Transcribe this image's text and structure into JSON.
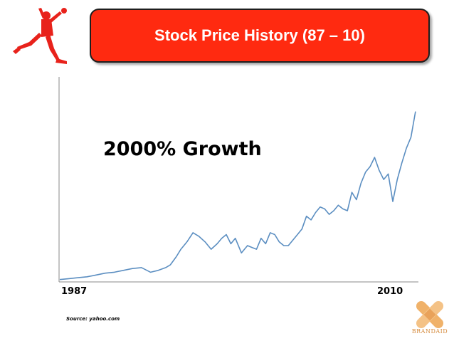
{
  "header": {
    "title": "Stock Price History (87 – 10)",
    "title_bg": "#ff2a10"
  },
  "logo": {
    "icon": "jumpman-silhouette-icon",
    "color": "#e8221b"
  },
  "chart_data": {
    "type": "line",
    "title": "",
    "annotation": "2000% Growth",
    "x_tick_labels": [
      "1987",
      "2010"
    ],
    "xlabel": "",
    "ylabel": "",
    "xlim": [
      1987,
      2010.6
    ],
    "ylim": [
      0,
      100
    ],
    "grid": false,
    "legend": "none",
    "axes": "left and bottom axis lines only, no y tick labels",
    "series": [
      {
        "color": "#5b8ec1",
        "x": [
          1987.0,
          1987.6,
          1988.2,
          1988.8,
          1989.4,
          1990.0,
          1990.6,
          1991.2,
          1991.8,
          1992.4,
          1993.0,
          1993.5,
          1994.0,
          1994.3,
          1994.7,
          1995.0,
          1995.4,
          1995.8,
          1996.2,
          1996.6,
          1997.0,
          1997.4,
          1997.7,
          1998.0,
          1998.3,
          1998.6,
          1999.0,
          1999.4,
          1999.7,
          2000.0,
          2000.3,
          2000.6,
          2000.9,
          2001.2,
          2001.5,
          2001.8,
          2002.1,
          2002.4,
          2002.7,
          2003.0,
          2003.3,
          2003.6,
          2003.9,
          2004.2,
          2004.5,
          2004.8,
          2005.1,
          2005.4,
          2005.7,
          2006.0,
          2006.3,
          2006.6,
          2006.9,
          2007.2,
          2007.5,
          2007.8,
          2008.1,
          2008.4,
          2008.7,
          2009.0,
          2009.3,
          2009.6,
          2009.9,
          2010.2,
          2010.5
        ],
        "y": [
          0.5,
          1.0,
          1.5,
          2.0,
          3.0,
          4.0,
          4.5,
          5.5,
          6.5,
          7.0,
          4.5,
          5.5,
          7.0,
          8.5,
          13.0,
          17.0,
          21.0,
          26.0,
          24.0,
          21.0,
          17.0,
          20.0,
          23.0,
          25.0,
          20.0,
          23.0,
          15.0,
          19.0,
          18.0,
          17.0,
          23.0,
          20.0,
          26.0,
          25.0,
          21.0,
          19.0,
          19.0,
          22.0,
          25.0,
          28.0,
          35.0,
          33.0,
          37.0,
          40.0,
          39.0,
          36.0,
          38.0,
          41.0,
          39.0,
          38.0,
          48.0,
          44.0,
          53.0,
          59.0,
          62.0,
          67.0,
          60.0,
          55.0,
          58.0,
          43.0,
          55.0,
          64.0,
          72.0,
          78.0,
          92.0
        ]
      }
    ]
  },
  "footer": {
    "source": "Source: yahoo.com",
    "brand": "BRANDAID"
  }
}
